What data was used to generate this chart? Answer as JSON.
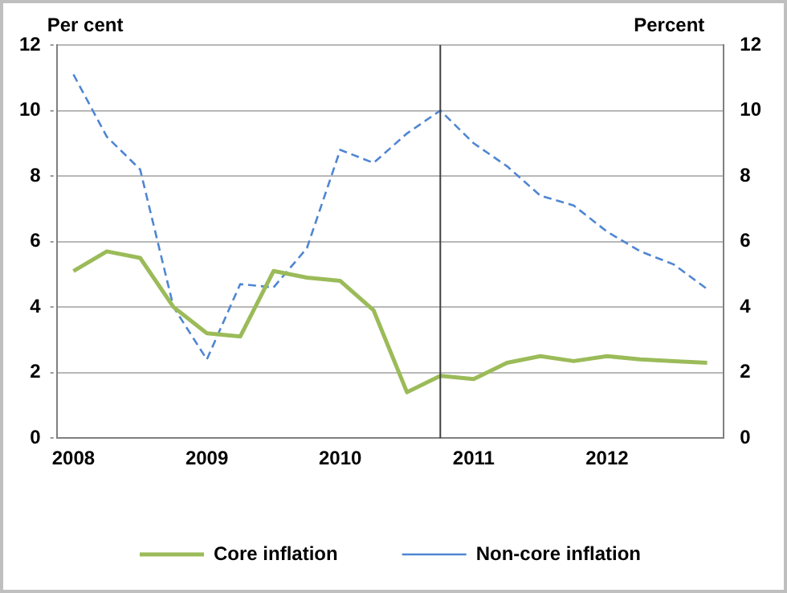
{
  "chart_data": {
    "type": "line",
    "ylabel": "Per cent",
    "y2label": "Percent",
    "x": [
      2008,
      2008.25,
      2008.5,
      2008.75,
      2009,
      2009.25,
      2009.5,
      2009.75,
      2010,
      2010.25,
      2010.5,
      2010.75,
      2011,
      2011.25,
      2011.5,
      2011.75,
      2012,
      2012.25,
      2012.5,
      2012.75
    ],
    "xlim": [
      2007.875,
      2012.875
    ],
    "xticks": [
      2008,
      2009,
      2010,
      2011,
      2012
    ],
    "ylim": [
      0,
      12
    ],
    "yticks": [
      0,
      2,
      4,
      6,
      8,
      10,
      12
    ],
    "y2lim": [
      0,
      12
    ],
    "y2ticks": [
      0,
      2,
      4,
      6,
      8,
      10,
      12
    ],
    "series": [
      {
        "name": "Core inflation",
        "color": "#9bbb59",
        "line_style": "solid",
        "values": [
          5.1,
          5.7,
          5.5,
          4.0,
          3.2,
          3.1,
          5.1,
          4.9,
          4.8,
          3.9,
          1.4,
          1.9,
          1.8,
          2.3,
          2.5,
          2.35,
          2.5,
          2.4,
          2.35,
          2.3
        ]
      },
      {
        "name": "Non-core inflation",
        "color": "#4f86d2",
        "line_style": "dashed",
        "values": [
          11.1,
          9.2,
          8.2,
          4.0,
          2.4,
          4.7,
          4.6,
          5.8,
          8.8,
          8.4,
          9.3,
          10.0,
          9.0,
          8.3,
          7.4,
          7.1,
          6.3,
          5.7,
          5.3,
          4.55
        ]
      }
    ],
    "ref_lines": [
      {
        "axis": "x",
        "value": 2010.75,
        "color": "#404040"
      }
    ],
    "grid": "y",
    "legend": "bottom",
    "marker": "none"
  }
}
